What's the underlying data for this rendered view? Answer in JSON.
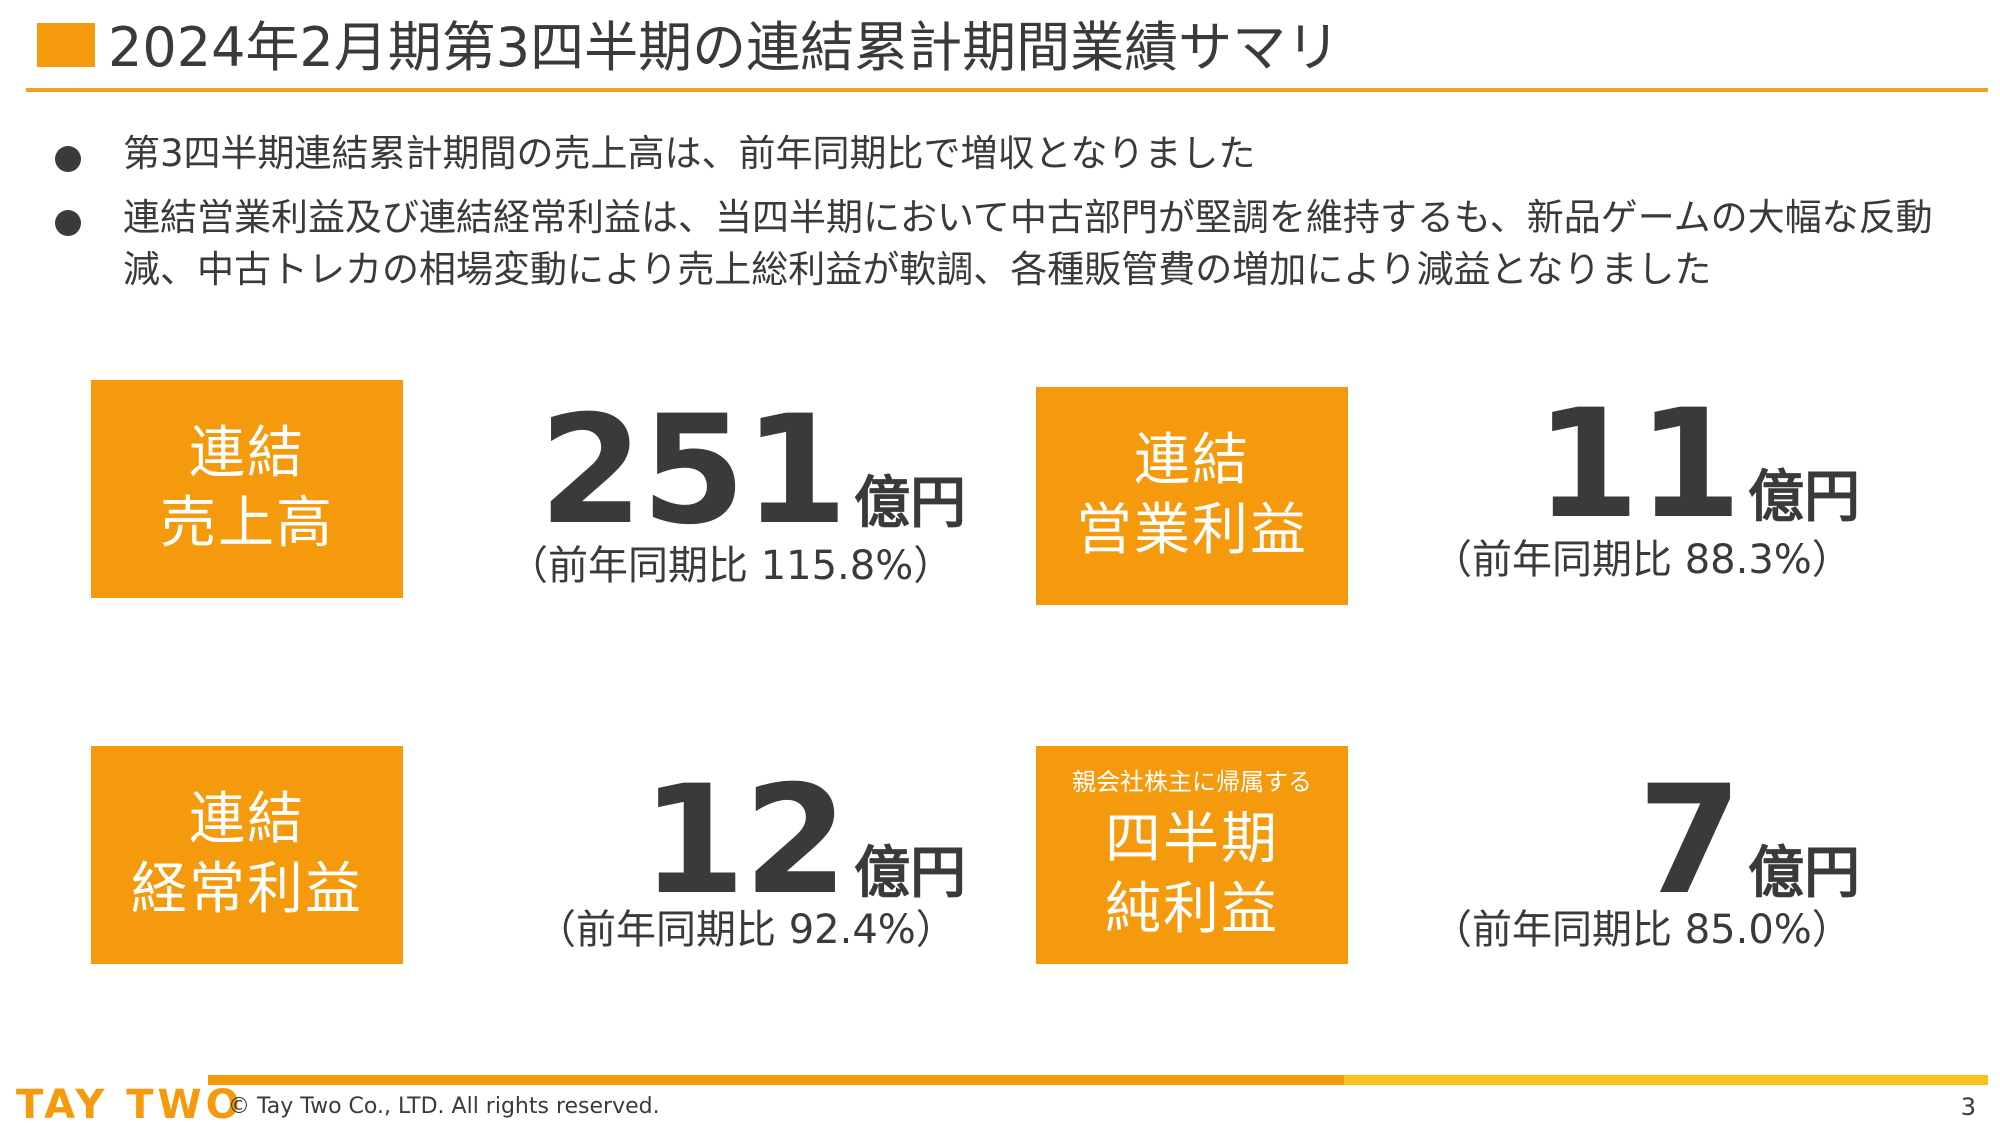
{
  "slide": {
    "title": "2024年2月期第3四半期の連結累計期間業績サマリ",
    "bullets": [
      "第3四半期連結累計期間の売上高は、前年同期比で増収となりました",
      "連結営業利益及び連結経常利益は、当四半期において中古部門が堅調を維持するも、新品ゲームの大幅な反動減、中古トレカの相場変動により売上総利益が軟調、各種販管費の増加により減益となりました"
    ]
  },
  "metrics": [
    {
      "label_line1": "連結",
      "label_line2": "売上高",
      "value": "251",
      "unit": "億円",
      "yoy": "（前年同期比 115.8%）"
    },
    {
      "label_line1": "連結",
      "label_line2": "営業利益",
      "value": "11",
      "unit": "億円",
      "yoy": "（前年同期比 88.3%）"
    },
    {
      "label_line1": "連結",
      "label_line2": "経常利益",
      "value": "12",
      "unit": "億円",
      "yoy": "（前年同期比 92.4%）"
    },
    {
      "label_small": "親会社株主に帰属する",
      "label_line1": "四半期",
      "label_line2": "純利益",
      "value": "7",
      "unit": "億円",
      "yoy": "（前年同期比 85.0%）"
    }
  ],
  "footer": {
    "logo": "TAY TWO",
    "copyright": "© Tay Two Co., LTD. All rights reserved.",
    "page_number": "3"
  },
  "colors": {
    "accent": "#f59a0c",
    "accent_yellow": "#f8c21a",
    "text": "#3a3a3a"
  }
}
